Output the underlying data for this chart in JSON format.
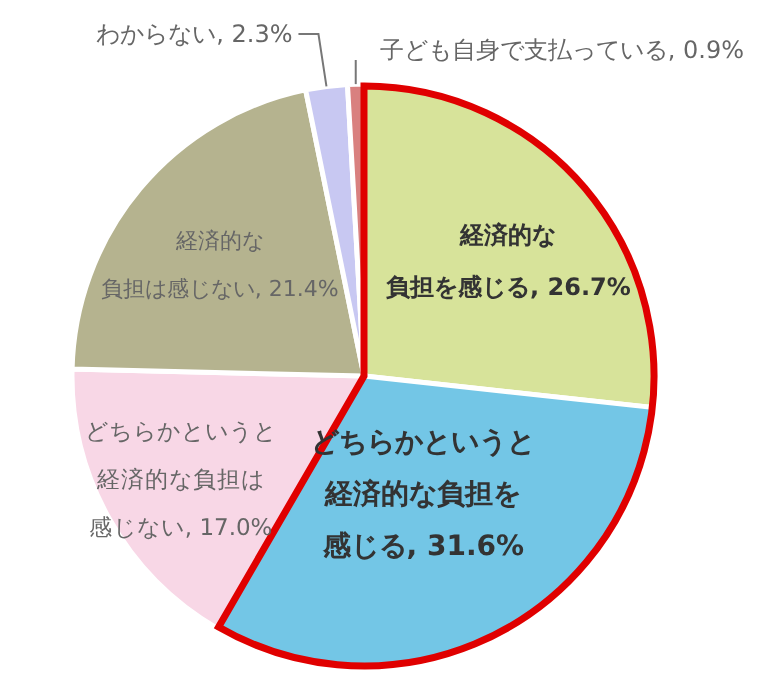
{
  "chart_data": {
    "type": "pie",
    "categories": [
      "経済的な負担を感じる",
      "どちらかというと経済的な負担を感じる",
      "どちらかというと経済的な負担は感じない",
      "経済的な負担は感じない",
      "わからない",
      "子ども自身で支払っている"
    ],
    "values": [
      26.7,
      31.6,
      17.0,
      21.4,
      2.3,
      0.9
    ],
    "value_labels": [
      "26.7%",
      "31.6%",
      "17.0%",
      "21.4%",
      "2.3%",
      "0.9%"
    ],
    "colors": [
      "#d7e39a",
      "#73c6e6",
      "#f8d7e6",
      "#b5b38f",
      "#c8c8f2",
      "#d9807f"
    ],
    "legend": false
  }
}
